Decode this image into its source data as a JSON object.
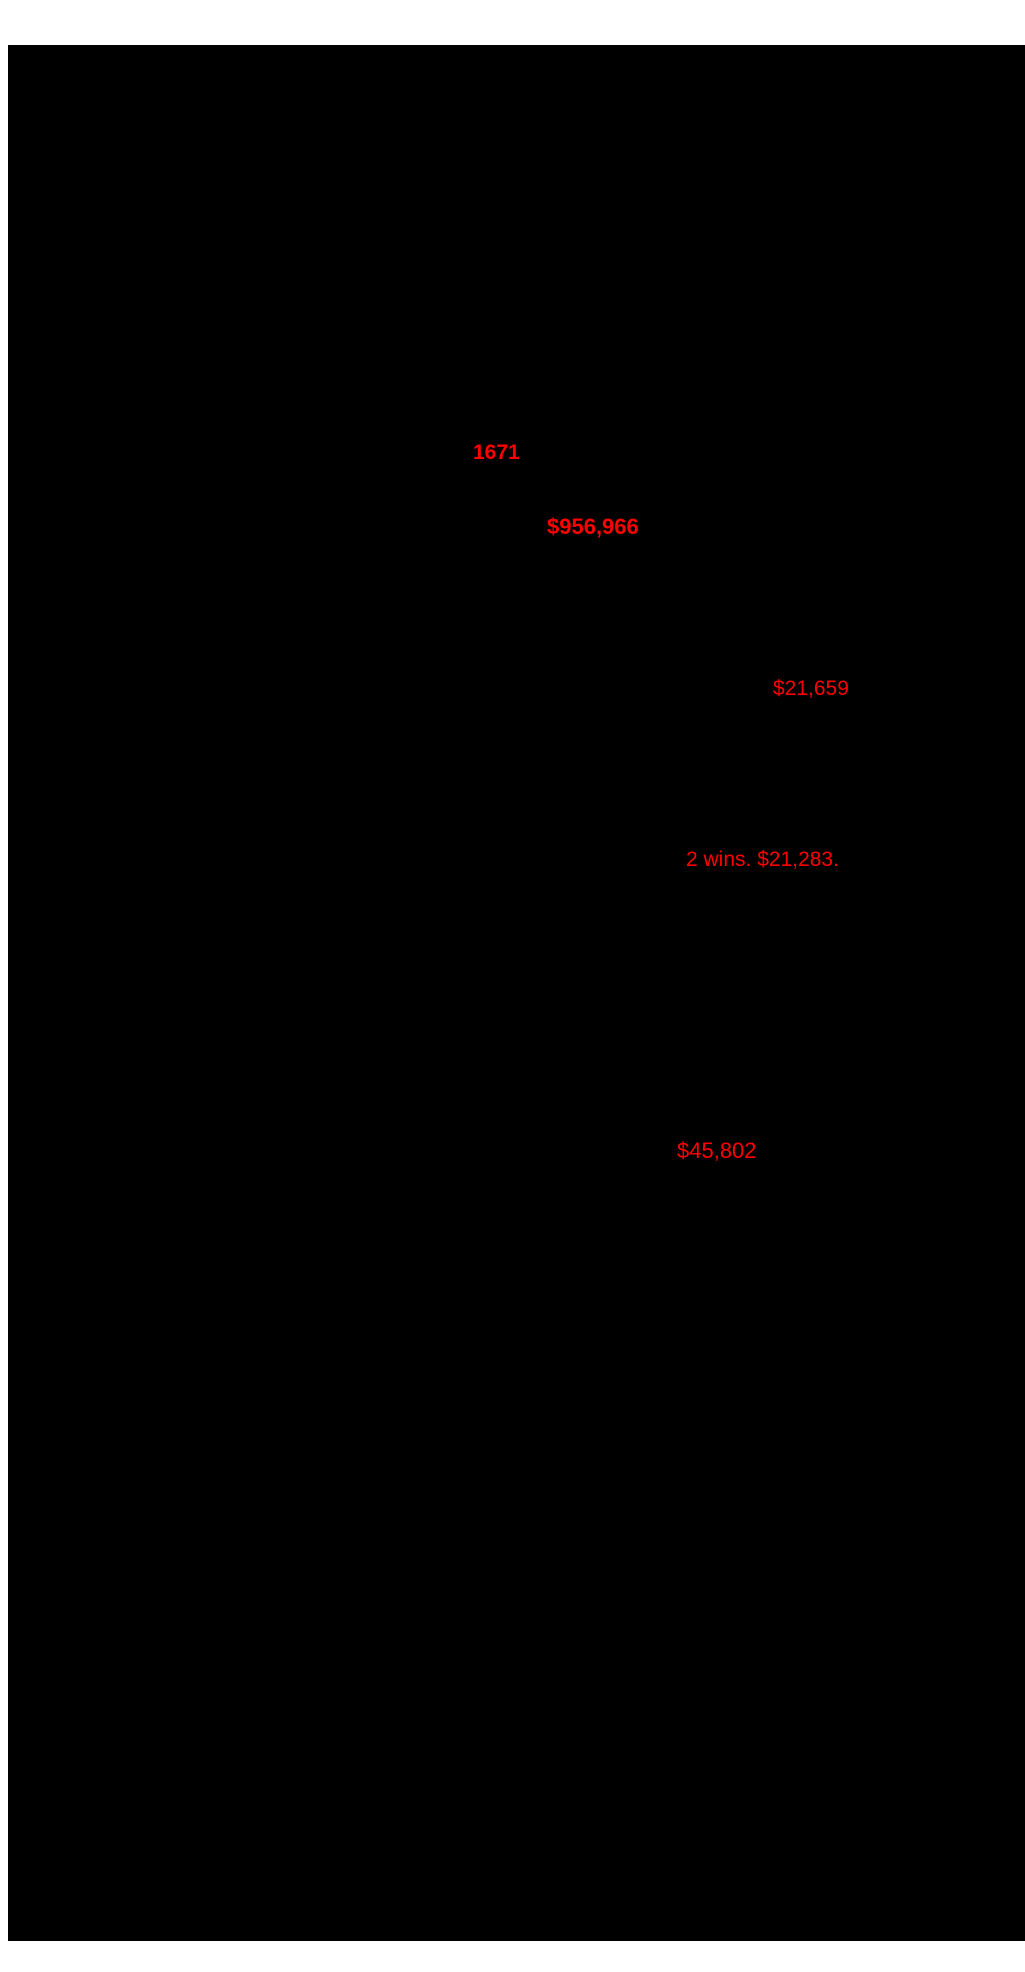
{
  "page": {
    "background_color": "#ffffff",
    "canvas_color": "#000000",
    "accent_red": "#ff0000"
  },
  "stats": {
    "count_1671": "1671",
    "amount_956966": "$956,966",
    "amount_21659": "$21,659",
    "wins_line": "2 wins. $21,283.",
    "amount_45802": "$45,802"
  }
}
